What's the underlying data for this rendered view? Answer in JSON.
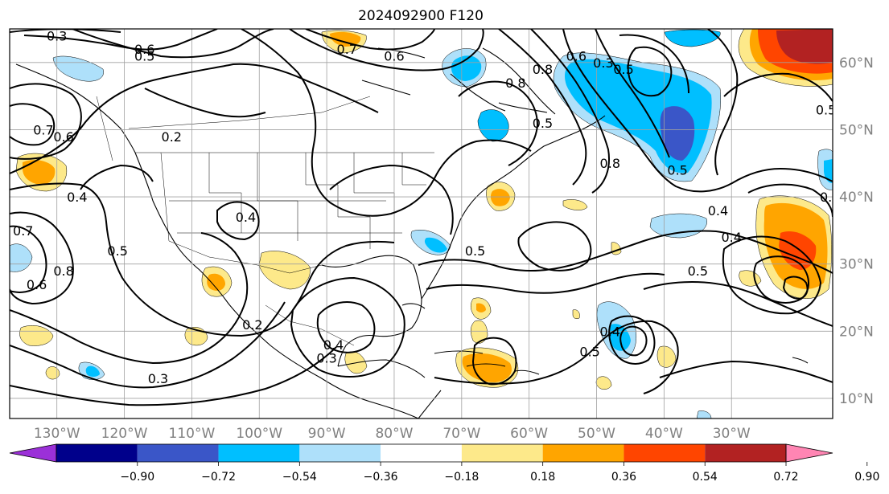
{
  "title": "2024092900 F120",
  "map": {
    "lon_range": [
      -137,
      -15
    ],
    "lat_range": [
      7,
      65
    ],
    "lon_ticks": [
      {
        "lon": -130,
        "label": "130°W"
      },
      {
        "lon": -120,
        "label": "120°W"
      },
      {
        "lon": -110,
        "label": "110°W"
      },
      {
        "lon": -100,
        "label": "100°W"
      },
      {
        "lon": -90,
        "label": "90°W"
      },
      {
        "lon": -80,
        "label": "80°W"
      },
      {
        "lon": -70,
        "label": "70°W"
      },
      {
        "lon": -60,
        "label": "60°W"
      },
      {
        "lon": -50,
        "label": "50°W"
      },
      {
        "lon": -40,
        "label": "40°W"
      },
      {
        "lon": -30,
        "label": "30°W"
      }
    ],
    "lat_ticks": [
      {
        "lat": 60,
        "label": "60°N"
      },
      {
        "lat": 50,
        "label": "50°N"
      },
      {
        "lat": 40,
        "label": "40°N"
      },
      {
        "lat": 30,
        "label": "30°N"
      },
      {
        "lat": 20,
        "label": "20°N"
      },
      {
        "lat": 10,
        "label": "10°N"
      }
    ],
    "grid": true,
    "contour_labels": [
      {
        "text": "0.3",
        "lon": -130,
        "lat": 64
      },
      {
        "text": "0.6",
        "lon": -117,
        "lat": 62
      },
      {
        "text": "0.5",
        "lon": -117,
        "lat": 61
      },
      {
        "text": "0.2",
        "lon": -113,
        "lat": 49
      },
      {
        "text": "0.7",
        "lon": -132,
        "lat": 50
      },
      {
        "text": "0.6",
        "lon": -129,
        "lat": 49
      },
      {
        "text": "0.4",
        "lon": -127,
        "lat": 40
      },
      {
        "text": "0.7",
        "lon": -135,
        "lat": 35
      },
      {
        "text": "0.5",
        "lon": -121,
        "lat": 32
      },
      {
        "text": "0.8",
        "lon": -129,
        "lat": 29
      },
      {
        "text": "0.6",
        "lon": -133,
        "lat": 27
      },
      {
        "text": "0.4",
        "lon": -102,
        "lat": 37
      },
      {
        "text": "0.2",
        "lon": -101,
        "lat": 21
      },
      {
        "text": "0.3",
        "lon": -115,
        "lat": 13
      },
      {
        "text": "0.4",
        "lon": -89,
        "lat": 18
      },
      {
        "text": "0.3",
        "lon": -90,
        "lat": 16
      },
      {
        "text": "0.7",
        "lon": -87,
        "lat": 62
      },
      {
        "text": "0.6",
        "lon": -80,
        "lat": 61
      },
      {
        "text": "0.6",
        "lon": -53,
        "lat": 61
      },
      {
        "text": "0.3",
        "lon": -49,
        "lat": 60
      },
      {
        "text": "0.5",
        "lon": -46,
        "lat": 59
      },
      {
        "text": "0.8",
        "lon": -62,
        "lat": 57
      },
      {
        "text": "0.8",
        "lon": -58,
        "lat": 59
      },
      {
        "text": "0.8",
        "lon": -48,
        "lat": 45
      },
      {
        "text": "0.5",
        "lon": -38,
        "lat": 44
      },
      {
        "text": "0.5",
        "lon": -58,
        "lat": 51
      },
      {
        "text": "0.5",
        "lon": -68,
        "lat": 32
      },
      {
        "text": "0.4",
        "lon": -48,
        "lat": 20
      },
      {
        "text": "0.5",
        "lon": -51,
        "lat": 17
      },
      {
        "text": "0.4",
        "lon": -32,
        "lat": 38
      },
      {
        "text": "0.4",
        "lon": -30,
        "lat": 34
      },
      {
        "text": "0.5",
        "lon": -35,
        "lat": 29
      },
      {
        "text": "0.5",
        "lon": -16,
        "lat": 53
      },
      {
        "text": "0.",
        "lon": -16,
        "lat": 40
      }
    ]
  },
  "colorbar": {
    "colors": [
      "#9b30d8",
      "#00008b",
      "#3a56c8",
      "#00bfff",
      "#aee0fa",
      "#ffffff",
      "#fde98a",
      "#ffa500",
      "#ff4500",
      "#b22222",
      "#ff85b3"
    ],
    "tick_labels": [
      "−0.90",
      "−0.72",
      "−0.54",
      "−0.36",
      "−0.18",
      "0.18",
      "0.36",
      "0.54",
      "0.72",
      "0.90"
    ],
    "extend": "both"
  }
}
